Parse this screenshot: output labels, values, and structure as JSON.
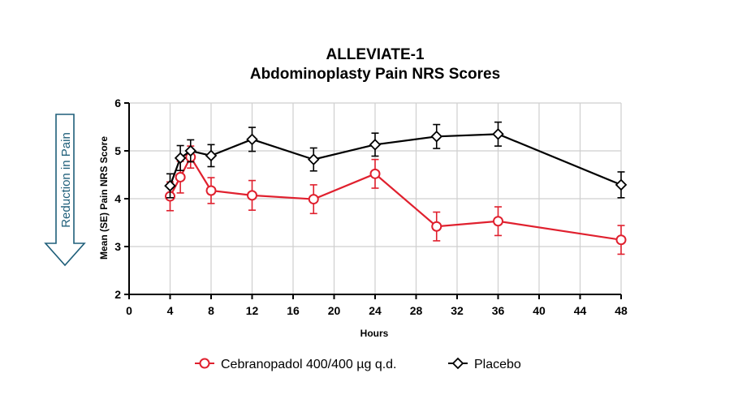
{
  "chart_data": {
    "type": "line",
    "title": "ALLEVIATE-1",
    "subtitle": "Abdominoplasty Pain NRS Scores",
    "xlabel": "Hours",
    "ylabel": "Mean (SE) Pain NRS Score",
    "xlim": [
      0,
      48
    ],
    "ylim": [
      2,
      6
    ],
    "xticks": [
      0,
      4,
      8,
      12,
      16,
      20,
      24,
      28,
      32,
      36,
      40,
      44,
      48
    ],
    "yticks": [
      2,
      3,
      4,
      5,
      6
    ],
    "grid": true,
    "legend_position": "bottom",
    "series": [
      {
        "name": "Cebranopadol 400/400 µg q.d.",
        "color": "#e0202e",
        "marker": "circle",
        "x": [
          4,
          5,
          6,
          8,
          12,
          18,
          24,
          30,
          36,
          48
        ],
        "y": [
          4.05,
          4.45,
          4.87,
          4.17,
          4.07,
          3.99,
          4.52,
          3.42,
          3.53,
          3.14
        ],
        "se": [
          0.3,
          0.33,
          0.23,
          0.27,
          0.31,
          0.3,
          0.3,
          0.3,
          0.3,
          0.3
        ]
      },
      {
        "name": "Placebo",
        "color": "#000000",
        "marker": "diamond",
        "x": [
          4,
          5,
          6,
          8,
          12,
          18,
          24,
          30,
          36,
          48
        ],
        "y": [
          4.27,
          4.85,
          5.0,
          4.9,
          5.24,
          4.82,
          5.13,
          5.3,
          5.35,
          4.29
        ],
        "se": [
          0.25,
          0.26,
          0.23,
          0.23,
          0.25,
          0.24,
          0.24,
          0.25,
          0.25,
          0.27
        ]
      }
    ],
    "annotation": "Reduction in Pain"
  }
}
